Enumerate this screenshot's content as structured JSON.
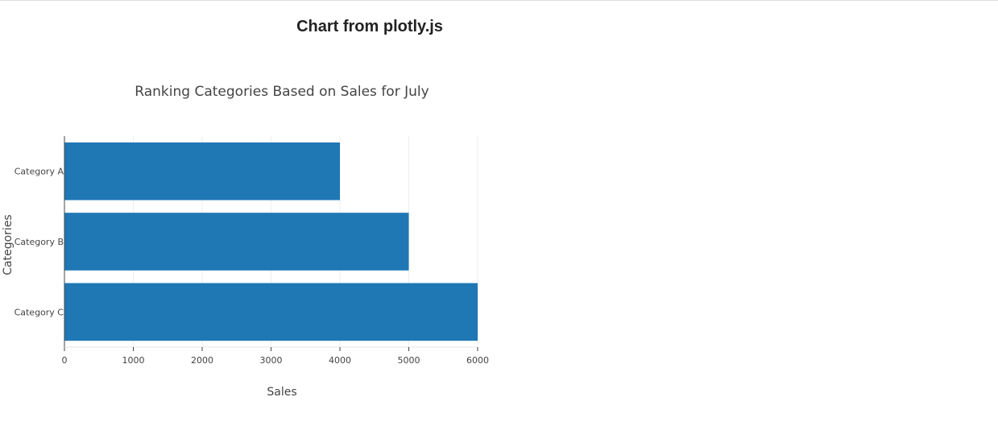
{
  "page": {
    "heading": "Chart from plotly.js"
  },
  "chart_data": {
    "type": "bar",
    "orientation": "horizontal",
    "title": "Ranking Categories Based on Sales for July",
    "xlabel": "Sales",
    "ylabel": "Categories",
    "categories": [
      "Category A",
      "Category B",
      "Category C"
    ],
    "values": [
      4000,
      5000,
      6000
    ],
    "xlim": [
      0,
      6000
    ],
    "x_ticks": [
      0,
      1000,
      2000,
      3000,
      4000,
      5000,
      6000
    ],
    "grid": true,
    "bar_color": "#1f77b4"
  }
}
